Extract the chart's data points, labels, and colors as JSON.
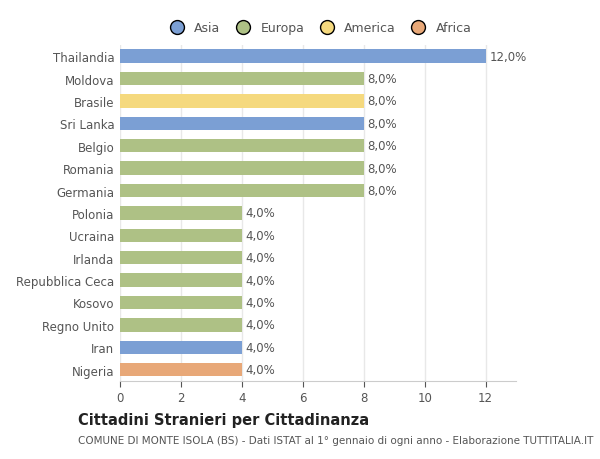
{
  "categories": [
    "Thailandia",
    "Moldova",
    "Brasile",
    "Sri Lanka",
    "Belgio",
    "Romania",
    "Germania",
    "Polonia",
    "Ucraina",
    "Irlanda",
    "Repubblica Ceca",
    "Kosovo",
    "Regno Unito",
    "Iran",
    "Nigeria"
  ],
  "values": [
    12.0,
    8.0,
    8.0,
    8.0,
    8.0,
    8.0,
    8.0,
    4.0,
    4.0,
    4.0,
    4.0,
    4.0,
    4.0,
    4.0,
    4.0
  ],
  "bar_colors": [
    "#7b9fd4",
    "#aec185",
    "#f5d97e",
    "#7b9fd4",
    "#aec185",
    "#aec185",
    "#aec185",
    "#aec185",
    "#aec185",
    "#aec185",
    "#aec185",
    "#aec185",
    "#aec185",
    "#7b9fd4",
    "#e8a878"
  ],
  "bar_labels": [
    "12,0%",
    "8,0%",
    "8,0%",
    "8,0%",
    "8,0%",
    "8,0%",
    "8,0%",
    "4,0%",
    "4,0%",
    "4,0%",
    "4,0%",
    "4,0%",
    "4,0%",
    "4,0%",
    "4,0%"
  ],
  "xlim": [
    0,
    13
  ],
  "xticks": [
    0,
    2,
    4,
    6,
    8,
    10,
    12
  ],
  "title": "Cittadini Stranieri per Cittadinanza",
  "subtitle": "COMUNE DI MONTE ISOLA (BS) - Dati ISTAT al 1° gennaio di ogni anno - Elaborazione TUTTITALIA.IT",
  "legend_labels": [
    "Asia",
    "Europa",
    "America",
    "Africa"
  ],
  "legend_colors": [
    "#7b9fd4",
    "#aec185",
    "#f5d97e",
    "#e8a878"
  ],
  "background_color": "#ffffff",
  "plot_bg_color": "#ffffff",
  "grid_color": "#e8e8e8",
  "bar_height": 0.6,
  "label_fontsize": 8.5,
  "tick_fontsize": 8.5,
  "title_fontsize": 10.5,
  "subtitle_fontsize": 7.5,
  "text_color": "#555555"
}
